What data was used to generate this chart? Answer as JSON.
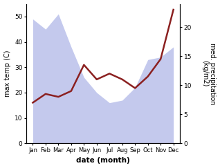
{
  "months": [
    "Jan",
    "Feb",
    "Mar",
    "Apr",
    "May",
    "Jun",
    "Jul",
    "Aug",
    "Sep",
    "Oct",
    "Nov",
    "Dec"
  ],
  "month_indices": [
    0,
    1,
    2,
    3,
    4,
    5,
    6,
    7,
    8,
    9,
    10,
    11
  ],
  "temp_upper": [
    49,
    45,
    51,
    38,
    26,
    20,
    16,
    17,
    22,
    33,
    34,
    38
  ],
  "temp_lower": [
    0,
    0,
    0,
    0,
    0,
    0,
    0,
    0,
    0,
    0,
    0,
    0
  ],
  "precipitation": [
    7.0,
    8.5,
    8.0,
    9.0,
    13.5,
    11.0,
    12.0,
    11.0,
    9.5,
    11.5,
    14.5,
    23.0
  ],
  "temp_line_color": "#8b2020",
  "fill_color": "#b0b8e8",
  "fill_alpha": 0.75,
  "left_ylabel": "max temp (C)",
  "right_ylabel": "med. precipitation\n(kg/m2)",
  "xlabel": "date (month)",
  "ylim_left": [
    0,
    55
  ],
  "ylim_right": [
    0,
    24
  ],
  "tick_left": [
    0,
    10,
    20,
    30,
    40,
    50
  ],
  "tick_right": [
    0,
    5,
    10,
    15,
    20
  ],
  "bg_color": "#ffffff",
  "line_width": 1.8
}
